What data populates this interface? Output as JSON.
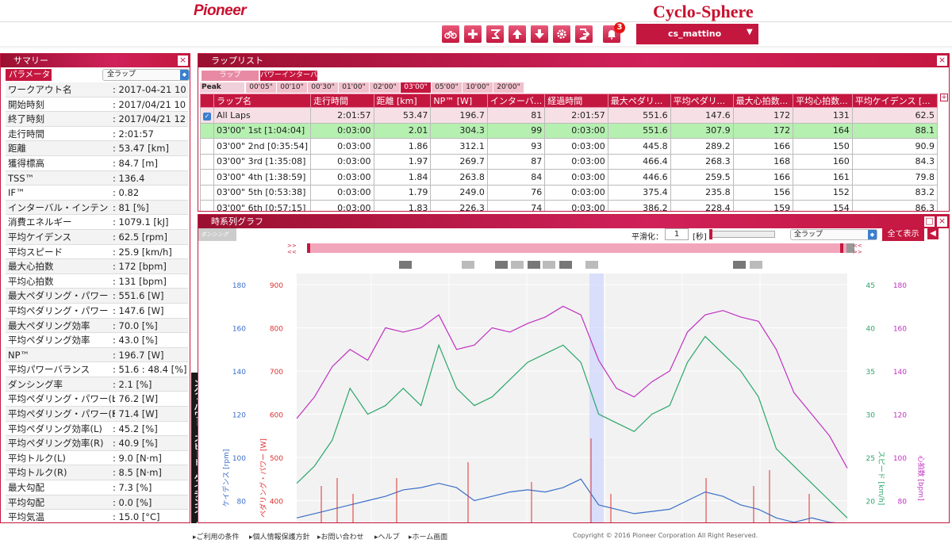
{
  "header": {
    "brand": "Pioneer",
    "app_title": "Cyclo-Sphere",
    "notification_count": "3",
    "username": "cs_mattino",
    "toolbar_icons": [
      "bike-icon",
      "plus-icon",
      "wattmeter-icon",
      "upload-icon",
      "download-icon",
      "gear-icon",
      "logout-icon",
      "bell-icon"
    ]
  },
  "summary": {
    "title": "サマリー",
    "param_label": "パラメータ",
    "lap_select": "全ラップ",
    "rows": [
      {
        "k": "ワークアウト名",
        "v": ": 2017-04-21 10"
      },
      {
        "k": "開始時刻",
        "v": ": 2017/04/21 10"
      },
      {
        "k": "終了時刻",
        "v": ": 2017/04/21 12"
      },
      {
        "k": "走行時間",
        "v": ": 2:01:57"
      },
      {
        "k": "距離",
        "v": ": 53.47 [km]"
      },
      {
        "k": "獲得標高",
        "v": ": 84.7 [m]"
      },
      {
        "k": "TSS™",
        "v": ": 136.4"
      },
      {
        "k": "IF™",
        "v": ": 0.82"
      },
      {
        "k": "インターバル・インテン",
        "v": ": 81 [%]"
      },
      {
        "k": "消費エネルギー",
        "v": ": 1079.1 [kJ]"
      },
      {
        "k": "平均ケイデンス",
        "v": ": 62.5 [rpm]"
      },
      {
        "k": "平均スピード",
        "v": ": 25.9 [km/h]"
      },
      {
        "k": "最大心拍数",
        "v": ": 172 [bpm]"
      },
      {
        "k": "平均心拍数",
        "v": ": 131 [bpm]"
      },
      {
        "k": "最大ペダリング・パワー",
        "v": ": 551.6 [W]"
      },
      {
        "k": "平均ペダリング・パワー",
        "v": ": 147.6 [W]"
      },
      {
        "k": "最大ペダリング効率",
        "v": ": 70.0 [%]"
      },
      {
        "k": "平均ペダリング効率",
        "v": ": 43.0 [%]"
      },
      {
        "k": "NP™",
        "v": ": 196.7 [W]"
      },
      {
        "k": "平均パワーバランス",
        "v": ": 51.6 : 48.4 [%]"
      },
      {
        "k": "ダンシング率",
        "v": ": 2.1 [%]"
      },
      {
        "k": "平均ペダリング・パワー(L)",
        "v": ": 76.2 [W]"
      },
      {
        "k": "平均ペダリング・パワー(R)",
        "v": ": 71.4 [W]"
      },
      {
        "k": "平均ペダリング効率(L)",
        "v": ": 45.2 [%]"
      },
      {
        "k": "平均ペダリング効率(R)",
        "v": ": 40.9 [%]"
      },
      {
        "k": "平均トルク(L)",
        "v": ": 9.0 [N·m]"
      },
      {
        "k": "平均トルク(R)",
        "v": ": 8.5 [N·m]"
      },
      {
        "k": "最大勾配",
        "v": ": 7.3 [%]"
      },
      {
        "k": "平均勾配",
        "v": ": 0.0 [%]"
      },
      {
        "k": "平均気温",
        "v": ": 15.0 [°C]"
      }
    ]
  },
  "vertical_tab": "ング・パワー、スピード、ケイデンス、心拍数",
  "laplist": {
    "title": "ラップリスト",
    "tabs": [
      "ラップ",
      "パワーインターバル"
    ],
    "peak_power_label": "Peak Power",
    "peak_tabs": [
      "00'05\"",
      "00'10\"",
      "00'30\"",
      "01'00\"",
      "02'00\"",
      "03'00\"",
      "05'00\"",
      "10'00\"",
      "20'00\""
    ],
    "columns": [
      "ラップ名",
      "走行時間",
      "距離 [km]",
      "NP™ [W]",
      "インターバ...",
      "経過時間",
      "最大ペダリ...",
      "平均ペダリ...",
      "最大心拍数...",
      "平均心拍数...",
      "平均ケイデンス [..."
    ],
    "rows": [
      {
        "name": "All Laps",
        "time": "2:01:57",
        "dist": "53.47",
        "np": "196.7",
        "iv": "81",
        "elapsed": "2:01:57",
        "maxp": "551.6",
        "avgp": "147.6",
        "maxhr": "172",
        "avghr": "131",
        "cad": "62.5"
      },
      {
        "name": "03'00\" 1st [1:04:04]",
        "time": "0:03:00",
        "dist": "2.01",
        "np": "304.3",
        "iv": "99",
        "elapsed": "0:03:00",
        "maxp": "551.6",
        "avgp": "307.9",
        "maxhr": "172",
        "avghr": "164",
        "cad": "88.1"
      },
      {
        "name": "03'00\" 2nd [0:35:54]",
        "time": "0:03:00",
        "dist": "1.86",
        "np": "312.1",
        "iv": "93",
        "elapsed": "0:03:00",
        "maxp": "445.8",
        "avgp": "289.2",
        "maxhr": "166",
        "avghr": "150",
        "cad": "90.9"
      },
      {
        "name": "03'00\" 3rd [1:35:08]",
        "time": "0:03:00",
        "dist": "1.97",
        "np": "269.7",
        "iv": "87",
        "elapsed": "0:03:00",
        "maxp": "466.4",
        "avgp": "268.3",
        "maxhr": "168",
        "avghr": "160",
        "cad": "84.3"
      },
      {
        "name": "03'00\" 4th [1:38:59]",
        "time": "0:03:00",
        "dist": "1.84",
        "np": "263.8",
        "iv": "84",
        "elapsed": "0:03:00",
        "maxp": "446.6",
        "avgp": "259.5",
        "maxhr": "166",
        "avghr": "161",
        "cad": "79.8"
      },
      {
        "name": "03'00\" 5th [0:53:38]",
        "time": "0:03:00",
        "dist": "1.79",
        "np": "249.0",
        "iv": "76",
        "elapsed": "0:03:00",
        "maxp": "375.4",
        "avgp": "235.8",
        "maxhr": "156",
        "avghr": "152",
        "cad": "83.2"
      },
      {
        "name": "03'00\" 6th [0:57:15]",
        "time": "0:03:00",
        "dist": "1.83",
        "np": "226.3",
        "iv": "74",
        "elapsed": "0:03:00",
        "maxp": "386.2",
        "avgp": "228.4",
        "maxhr": "159",
        "avghr": "154",
        "cad": "86.3"
      }
    ]
  },
  "graph": {
    "title": "時系列グラフ",
    "dancing_logo": "ダンシング",
    "smoothing_label": "平滑化：",
    "smoothing_value": "1",
    "smoothing_unit": "[秒]",
    "lap_select": "全ラップ",
    "show_all": "全て表示"
  },
  "chart_data": {
    "type": "line",
    "axes": {
      "cadence": {
        "label": "ケイデンス [rpm]",
        "ticks": [
          "180",
          "160",
          "140",
          "120",
          "100",
          "80"
        ],
        "color": "#3a6fc8"
      },
      "power": {
        "label": "ペダリング・パワー [W]",
        "ticks": [
          "900",
          "800",
          "700",
          "600",
          "500",
          "400"
        ],
        "color": "#e03030"
      },
      "speed": {
        "label": "スピード [km/h]",
        "ticks": [
          "45",
          "40",
          "35",
          "30",
          "25",
          "20"
        ],
        "color": "#2aa66a"
      },
      "heart_rate": {
        "label": "心拍数 [bpm]",
        "ticks": [
          "180",
          "160",
          "140",
          "120",
          "100",
          "80"
        ],
        "color": "#c030c0"
      }
    },
    "grid": true,
    "series": [
      {
        "name": "心拍数",
        "color": "#c030c0",
        "values": [
          118,
          128,
          142,
          150,
          145,
          160,
          158,
          160,
          166,
          150,
          152,
          160,
          158,
          162,
          165,
          170,
          166,
          145,
          132,
          128,
          135,
          140,
          158,
          166,
          168,
          165,
          163,
          150,
          130,
          120,
          110,
          95
        ]
      },
      {
        "name": "スピード",
        "color": "#2aa66a",
        "values": [
          22,
          24,
          27,
          33,
          30,
          31,
          33,
          31,
          38,
          33,
          31,
          32,
          34,
          36,
          37,
          38,
          36,
          30,
          29,
          28,
          30,
          31,
          36,
          39,
          37,
          35,
          32,
          26,
          24,
          22,
          20,
          18
        ]
      },
      {
        "name": "ケイデンス",
        "color": "#3a6fc8",
        "values": [
          72,
          74,
          76,
          78,
          80,
          82,
          85,
          86,
          88,
          86,
          80,
          82,
          84,
          85,
          84,
          86,
          90,
          78,
          76,
          74,
          75,
          76,
          80,
          84,
          82,
          78,
          76,
          72,
          70,
          72,
          70,
          68
        ]
      }
    ]
  },
  "footer": {
    "links": [
      "ご利用の条件",
      "個人情報保護方針",
      "お問い合わせ",
      "ヘルプ",
      "ホーム画面"
    ],
    "copyright": "Copyright © 2016 Pioneer Corporation All Right Reserved."
  }
}
